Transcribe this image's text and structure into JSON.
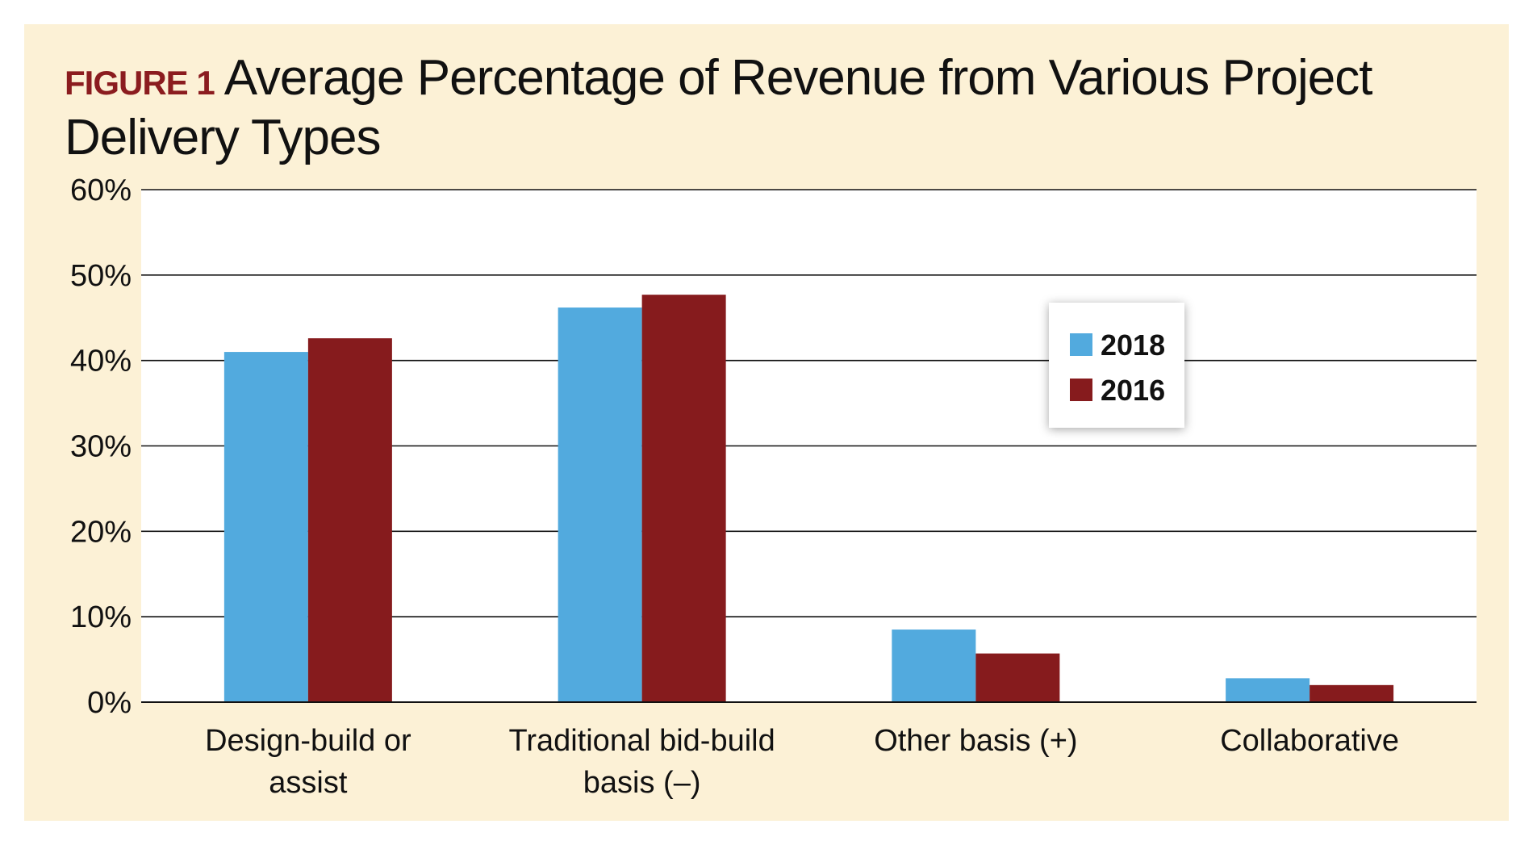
{
  "figure_label": "FIGURE 1",
  "colors": {
    "series_2018": "#52aade",
    "series_2016": "#861b1d",
    "panel": "#fcf1d6",
    "label_accent": "#8b1c1f"
  },
  "chart_data": {
    "type": "bar",
    "title": "Average Percentage of Revenue from Various Project Delivery Types",
    "categories": [
      [
        "Design-build or",
        "assist"
      ],
      [
        "Traditional bid-build",
        "basis (–)"
      ],
      [
        "Other basis (+)"
      ],
      [
        "Collaborative"
      ]
    ],
    "series": [
      {
        "name": "2018",
        "values": [
          41,
          46.2,
          8.5,
          2.8
        ]
      },
      {
        "name": "2016",
        "values": [
          42.6,
          47.7,
          5.7,
          2.0
        ]
      }
    ],
    "ylim": [
      0,
      60
    ],
    "yticks": [
      "0%",
      "10%",
      "20%",
      "30%",
      "40%",
      "50%",
      "60%"
    ],
    "ytick_values": [
      0,
      10,
      20,
      30,
      40,
      50,
      60
    ],
    "grid": true,
    "legend_position": "upper-right"
  }
}
